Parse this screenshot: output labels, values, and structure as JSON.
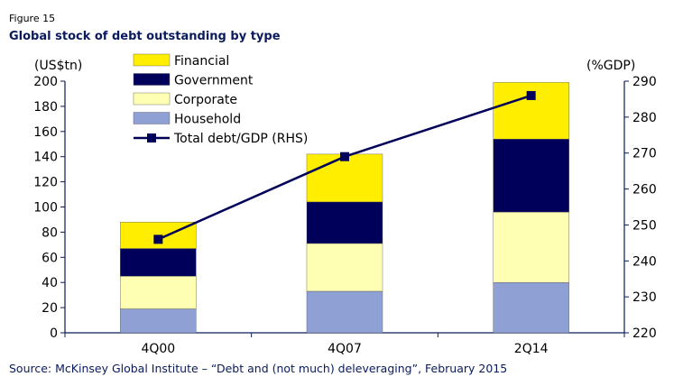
{
  "figure_label": "Figure 15",
  "title": "Global stock of debt outstanding by type",
  "source": "Source: McKinsey Global Institute – “Debt and (not much) deleveraging”, February 2015",
  "chart_data": {
    "type": "bar",
    "stacked": true,
    "categories": [
      "4Q00",
      "4Q07",
      "2Q14"
    ],
    "series": [
      {
        "name": "Household",
        "values": [
          19,
          33,
          40
        ],
        "color": "#8fa0d4"
      },
      {
        "name": "Corporate",
        "values": [
          26,
          38,
          56
        ],
        "color": "#ffffb3"
      },
      {
        "name": "Government",
        "values": [
          22,
          33,
          58
        ],
        "color": "#00005a"
      },
      {
        "name": "Financial",
        "values": [
          21,
          38,
          45
        ],
        "color": "#ffee00"
      }
    ],
    "line_series": {
      "name": "Total debt/GDP (RHS)",
      "values": [
        246,
        269,
        286
      ],
      "color": "#00005a",
      "axis": "right"
    },
    "legend_order": [
      "Financial",
      "Government",
      "Corporate",
      "Household",
      "Total debt/GDP (RHS)"
    ],
    "legend_position": "top-left",
    "ylabel": "(US$tn)",
    "ylabel_right": "(%GDP)",
    "ylim": [
      0,
      200
    ],
    "yticks": [
      0,
      20,
      40,
      60,
      80,
      100,
      120,
      140,
      160,
      180,
      200
    ],
    "ylim_right": [
      220,
      290
    ],
    "yticks_right": [
      220,
      230,
      240,
      250,
      260,
      270,
      280,
      290
    ],
    "grid": false
  }
}
